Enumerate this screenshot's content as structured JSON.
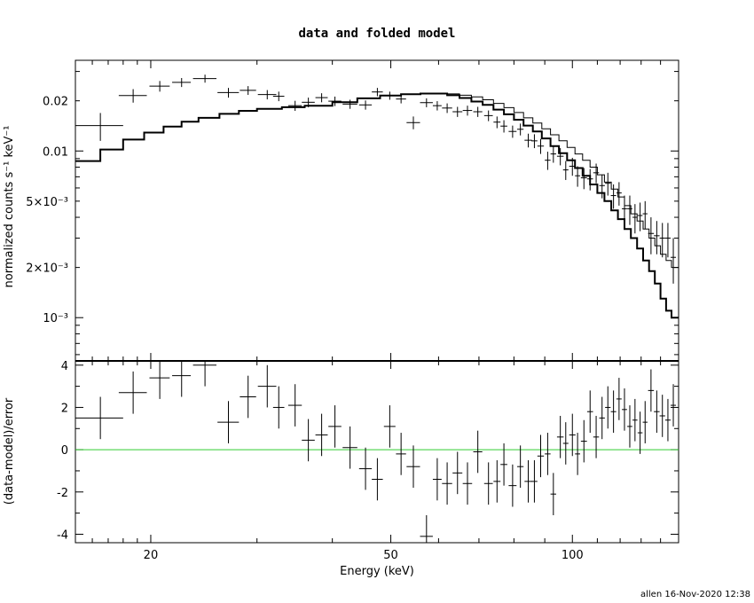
{
  "chart_data": [
    {
      "type": "scatter",
      "panel": "top",
      "title": "data and folded model",
      "xlabel": "",
      "ylabel": "normalized counts s⁻¹ keV⁻¹",
      "xscale": "log",
      "yscale": "log",
      "xlim": [
        15,
        150
      ],
      "ylim": [
        0.00055,
        0.035
      ],
      "yticks": [
        {
          "value": 0.02,
          "label": "0.02"
        },
        {
          "value": 0.01,
          "label": "0.01"
        },
        {
          "value": 0.005,
          "label": "5×10⁻³"
        },
        {
          "value": 0.002,
          "label": "2×10⁻³"
        },
        {
          "value": 0.001,
          "label": "10⁻³"
        }
      ],
      "data": {
        "x": [
          16.5,
          18.7,
          20.7,
          22.5,
          24.6,
          26.9,
          29.0,
          31.2,
          32.6,
          34.7,
          36.5,
          38.4,
          40.4,
          42.8,
          45.4,
          47.5,
          49.8,
          52.0,
          54.5,
          57.3,
          59.7,
          62.0,
          64.5,
          67.0,
          69.7,
          72.6,
          75.0,
          77.0,
          79.6,
          82.0,
          84.5,
          86.5,
          88.6,
          91.0,
          93.0,
          95.5,
          97.5,
          100.0,
          102.0,
          104.5,
          107.0,
          109.5,
          112.0,
          114.5,
          117.0,
          119.5,
          122.0,
          124.5,
          127.0,
          129.5,
          132.0,
          135.0,
          138.0,
          141.0,
          144.0,
          147.0
        ],
        "xerr": [
          1.5,
          1.0,
          0.8,
          0.8,
          1.1,
          1.1,
          0.9,
          1.1,
          0.7,
          0.9,
          0.9,
          0.9,
          1.0,
          1.2,
          1.1,
          1.0,
          1.1,
          1.0,
          1.4,
          1.4,
          1.0,
          1.2,
          1.2,
          1.2,
          1.2,
          1.2,
          1.0,
          1.0,
          1.2,
          1.0,
          1.2,
          1.0,
          1.1,
          1.0,
          1.0,
          1.2,
          1.0,
          1.2,
          1.0,
          1.2,
          1.2,
          1.2,
          1.2,
          1.2,
          1.2,
          1.2,
          1.2,
          1.2,
          1.2,
          1.2,
          1.2,
          1.5,
          1.5,
          1.5,
          1.5,
          1.5
        ],
        "y": [
          0.0142,
          0.0215,
          0.0245,
          0.0258,
          0.0272,
          0.0224,
          0.0231,
          0.0218,
          0.0213,
          0.0187,
          0.0196,
          0.0209,
          0.0199,
          0.0191,
          0.0189,
          0.0226,
          0.0215,
          0.0205,
          0.0148,
          0.0195,
          0.0187,
          0.0181,
          0.0172,
          0.0175,
          0.0172,
          0.0163,
          0.0149,
          0.0141,
          0.0131,
          0.0135,
          0.0116,
          0.0115,
          0.0107,
          0.0088,
          0.0096,
          0.0093,
          0.0077,
          0.0081,
          0.0071,
          0.0069,
          0.0068,
          0.0074,
          0.0062,
          0.0064,
          0.0054,
          0.0056,
          0.0045,
          0.0045,
          0.004,
          0.0041,
          0.0042,
          0.0032,
          0.0031,
          0.003,
          0.003,
          0.0023
        ],
        "yerr": [
          0.0027,
          0.002,
          0.0018,
          0.0016,
          0.0015,
          0.0015,
          0.0014,
          0.0014,
          0.0014,
          0.0013,
          0.0013,
          0.0013,
          0.0013,
          0.0012,
          0.0012,
          0.0013,
          0.0012,
          0.0012,
          0.0013,
          0.0012,
          0.0012,
          0.0012,
          0.0012,
          0.0012,
          0.0012,
          0.0012,
          0.0012,
          0.0012,
          0.0011,
          0.0011,
          0.0011,
          0.0011,
          0.0011,
          0.0011,
          0.0011,
          0.0011,
          0.001,
          0.001,
          0.001,
          0.001,
          0.001,
          0.001,
          0.001,
          0.001,
          0.0009,
          0.0009,
          0.0009,
          0.0009,
          0.0008,
          0.0008,
          0.0008,
          0.0008,
          0.0007,
          0.0007,
          0.0007,
          0.0007
        ]
      },
      "model_step": {
        "x": [
          15,
          16.5,
          18.0,
          19.5,
          21.0,
          22.5,
          24.0,
          26.0,
          28.0,
          30.0,
          33.0,
          36.0,
          40.0,
          44.0,
          48.0,
          52.0,
          56.0,
          59.0,
          62.0,
          65.0,
          68.0,
          71.0,
          74.0,
          77.0,
          80.0,
          83.0,
          86.0,
          89.0,
          92.0,
          95.0,
          98.0,
          101.0,
          104.0,
          107.0,
          110.0,
          113.0,
          116.0,
          119.0,
          122.0,
          125.0,
          128.0,
          131.0,
          134.0,
          137.0,
          140.0,
          143.0,
          146.0,
          150.0
        ],
        "y": [
          0.0087,
          0.0102,
          0.0117,
          0.0129,
          0.014,
          0.015,
          0.0158,
          0.0167,
          0.0174,
          0.0179,
          0.0183,
          0.0187,
          0.0196,
          0.0207,
          0.0215,
          0.0219,
          0.0221,
          0.0221,
          0.0216,
          0.0208,
          0.0198,
          0.0189,
          0.0177,
          0.0166,
          0.0154,
          0.0142,
          0.0131,
          0.0119,
          0.0107,
          0.0097,
          0.0088,
          0.0079,
          0.0071,
          0.0063,
          0.0056,
          0.005,
          0.0044,
          0.0039,
          0.0034,
          0.003,
          0.0026,
          0.0022,
          0.0019,
          0.0016,
          0.0013,
          0.0011,
          0.001,
          0.0005
        ]
      },
      "model_upper": {
        "x": [
          15,
          16.5,
          18.0,
          19.5,
          21.0,
          22.5,
          24.0,
          26.0,
          28.0,
          30.0,
          33.0,
          36.0,
          40.0,
          44.0,
          48.0,
          52.0,
          56.0,
          59.0,
          62.0,
          65.0,
          68.0,
          71.0,
          74.0,
          77.0,
          80.0,
          83.0,
          86.0,
          89.0,
          92.0,
          95.0,
          98.0,
          101.0,
          104.0,
          107.0,
          110.0,
          113.0,
          116.0,
          119.0,
          122.0,
          125.0,
          128.0,
          131.0,
          134.0,
          137.0,
          140.0,
          143.0,
          146.0,
          150.0
        ],
        "y": [
          0.0087,
          0.0102,
          0.0117,
          0.0129,
          0.014,
          0.015,
          0.0158,
          0.0167,
          0.0174,
          0.0179,
          0.0183,
          0.0187,
          0.0196,
          0.0207,
          0.0215,
          0.0219,
          0.0221,
          0.0222,
          0.022,
          0.0216,
          0.0211,
          0.0203,
          0.0193,
          0.0182,
          0.017,
          0.0158,
          0.0147,
          0.0136,
          0.0125,
          0.0115,
          0.0105,
          0.0096,
          0.0088,
          0.008,
          0.0072,
          0.0065,
          0.0059,
          0.0053,
          0.0047,
          0.0042,
          0.0038,
          0.0034,
          0.003,
          0.0027,
          0.0024,
          0.0022,
          0.002,
          0.0019
        ]
      }
    },
    {
      "type": "scatter",
      "panel": "bottom",
      "xlabel": "Energy (keV)",
      "ylabel": "(data-model)/error",
      "xscale": "log",
      "xlim": [
        15,
        150
      ],
      "ylim": [
        -4.4,
        4.2
      ],
      "yticks": [
        {
          "value": 4,
          "label": "4"
        },
        {
          "value": 2,
          "label": "2"
        },
        {
          "value": 0,
          "label": "0"
        },
        {
          "value": -2,
          "label": "-2"
        },
        {
          "value": -4,
          "label": "-4"
        }
      ],
      "xticks": [
        {
          "value": 20,
          "label": "20"
        },
        {
          "value": 50,
          "label": "50"
        },
        {
          "value": 100,
          "label": "100"
        }
      ],
      "zero_line_color": "#33cc33",
      "data": {
        "x": [
          16.5,
          18.7,
          20.7,
          22.5,
          24.6,
          26.9,
          29.0,
          31.2,
          32.6,
          34.7,
          36.5,
          38.4,
          40.4,
          42.8,
          45.4,
          47.5,
          49.8,
          52.0,
          54.5,
          57.3,
          59.7,
          62.0,
          64.5,
          67.0,
          69.7,
          72.6,
          75.0,
          77.0,
          79.6,
          82.0,
          84.5,
          86.5,
          88.6,
          91.0,
          93.0,
          95.5,
          97.5,
          100.0,
          102.0,
          104.5,
          107.0,
          109.5,
          112.0,
          114.5,
          117.0,
          119.5,
          122.0,
          124.5,
          127.0,
          129.5,
          132.0,
          135.0,
          138.0,
          141.0,
          144.0,
          147.0
        ],
        "xerr": [
          1.5,
          1.0,
          0.8,
          0.8,
          1.1,
          1.1,
          0.9,
          1.1,
          0.7,
          0.9,
          0.9,
          0.9,
          1.0,
          1.2,
          1.1,
          1.0,
          1.1,
          1.0,
          1.4,
          1.4,
          1.0,
          1.2,
          1.2,
          1.2,
          1.2,
          1.2,
          1.0,
          1.0,
          1.2,
          1.0,
          1.2,
          1.0,
          1.1,
          1.0,
          1.0,
          1.2,
          1.0,
          1.2,
          1.0,
          1.2,
          1.2,
          1.2,
          1.2,
          1.2,
          1.2,
          1.2,
          1.2,
          1.2,
          1.2,
          1.2,
          1.2,
          1.5,
          1.5,
          1.5,
          1.5,
          1.5
        ],
        "y": [
          1.5,
          2.7,
          3.4,
          3.5,
          4.0,
          1.3,
          2.5,
          3.0,
          2.0,
          2.1,
          0.45,
          0.7,
          1.1,
          0.1,
          -0.9,
          -1.4,
          1.1,
          -0.2,
          -0.8,
          -4.1,
          -1.4,
          -1.6,
          -1.1,
          -1.6,
          -0.1,
          -1.6,
          -1.5,
          -0.7,
          -1.7,
          -0.8,
          -1.5,
          -1.5,
          -0.3,
          -0.2,
          -2.1,
          0.6,
          0.3,
          0.7,
          -0.2,
          0.4,
          1.8,
          0.6,
          1.5,
          2.0,
          1.8,
          2.4,
          1.9,
          1.1,
          1.4,
          0.8,
          1.3,
          2.8,
          1.8,
          1.6,
          1.4,
          2.1
        ],
        "yerr": [
          1.0,
          1.0,
          1.0,
          1.0,
          1.0,
          1.0,
          1.0,
          1.0,
          1.0,
          1.0,
          1.0,
          1.0,
          1.0,
          1.0,
          1.0,
          1.0,
          1.0,
          1.0,
          1.0,
          1.0,
          1.0,
          1.0,
          1.0,
          1.0,
          1.0,
          1.0,
          1.0,
          1.0,
          1.0,
          1.0,
          1.0,
          1.0,
          1.0,
          1.0,
          1.0,
          1.0,
          1.0,
          1.0,
          1.0,
          1.0,
          1.0,
          1.0,
          1.0,
          1.0,
          1.0,
          1.0,
          1.0,
          1.0,
          1.0,
          1.0,
          1.0,
          1.0,
          1.0,
          1.0,
          1.0,
          1.0
        ]
      }
    }
  ],
  "footer": {
    "stamp": "allen 16-Nov-2020 12:38"
  }
}
